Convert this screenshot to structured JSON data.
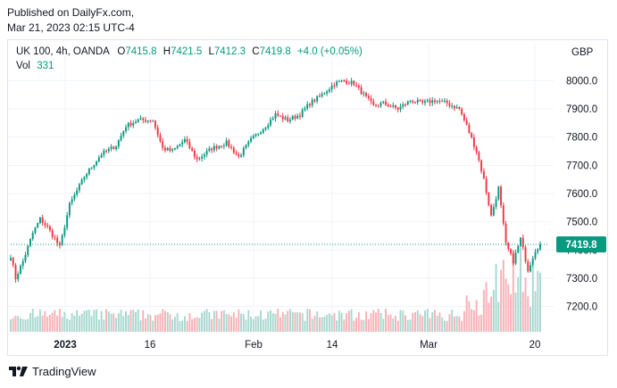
{
  "header": {
    "published": "Published on DailyFx.com,",
    "timestamp": "Mar 21, 2023 02:15 UTC-4"
  },
  "legend": {
    "symbol": "UK 100, 4h, OANDA",
    "o_label": "O",
    "o_value": "7415.8",
    "h_label": "H",
    "h_value": "7421.5",
    "l_label": "L",
    "l_value": "7412.3",
    "c_label": "C",
    "c_value": "7419.8",
    "change": "+4.0 (+0.05%)",
    "vol_label": "Vol",
    "vol_value": "331"
  },
  "currency": "GBP",
  "footer": {
    "brand": "TradingView",
    "logo_icon": "tradingview-logo-icon"
  },
  "colors": {
    "up": "#089981",
    "down": "#f23645",
    "vol_up": "#a8d8cf",
    "vol_down": "#f7b1b6",
    "price_line": "#089981"
  },
  "chart_data": {
    "type": "candlestick",
    "y_ticks": [
      "8000.0",
      "7900.0",
      "7800.0",
      "7700.0",
      "7600.0",
      "7500.0",
      "7400.0",
      "7300.0",
      "7200.0"
    ],
    "x_ticks": [
      "2023",
      "16",
      "Feb",
      "14",
      "Mar",
      "20"
    ],
    "ylim": [
      7110,
      8090
    ],
    "last_price": "7419.8",
    "grid": true,
    "anchors": [
      [
        0,
        7380
      ],
      [
        2,
        7300
      ],
      [
        5,
        7360
      ],
      [
        9,
        7460
      ],
      [
        12,
        7510
      ],
      [
        15,
        7480
      ],
      [
        18,
        7440
      ],
      [
        20,
        7410
      ],
      [
        24,
        7560
      ],
      [
        30,
        7660
      ],
      [
        37,
        7740
      ],
      [
        43,
        7770
      ],
      [
        47,
        7840
      ],
      [
        52,
        7860
      ],
      [
        58,
        7860
      ],
      [
        62,
        7760
      ],
      [
        66,
        7750
      ],
      [
        71,
        7790
      ],
      [
        76,
        7720
      ],
      [
        82,
        7760
      ],
      [
        88,
        7780
      ],
      [
        93,
        7730
      ],
      [
        98,
        7790
      ],
      [
        104,
        7840
      ],
      [
        108,
        7880
      ],
      [
        113,
        7860
      ],
      [
        118,
        7880
      ],
      [
        122,
        7920
      ],
      [
        127,
        7950
      ],
      [
        132,
        7990
      ],
      [
        136,
        8000
      ],
      [
        140,
        7990
      ],
      [
        144,
        7950
      ],
      [
        148,
        7910
      ],
      [
        152,
        7920
      ],
      [
        158,
        7900
      ],
      [
        163,
        7930
      ],
      [
        168,
        7920
      ],
      [
        173,
        7930
      ],
      [
        178,
        7920
      ],
      [
        183,
        7900
      ],
      [
        186,
        7840
      ],
      [
        190,
        7750
      ],
      [
        193,
        7650
      ],
      [
        196,
        7520
      ],
      [
        199,
        7620
      ],
      [
        202,
        7420
      ],
      [
        205,
        7360
      ],
      [
        208,
        7440
      ],
      [
        211,
        7330
      ],
      [
        214,
        7400
      ],
      [
        216,
        7419.8
      ]
    ]
  }
}
